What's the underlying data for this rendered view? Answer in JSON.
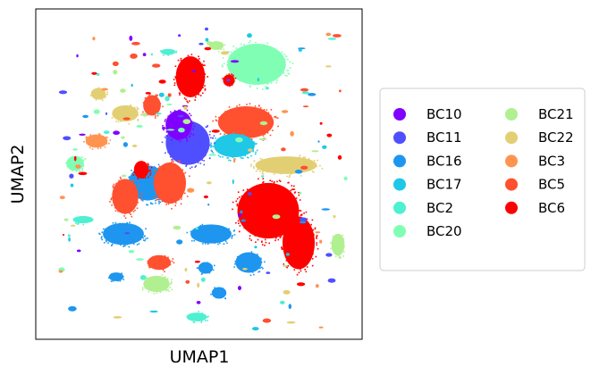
{
  "chart_data": {
    "type": "scatter",
    "title": "",
    "xlabel": "UMAP1",
    "ylabel": "UMAP2",
    "x_ticks": [],
    "y_ticks": [],
    "grid": false,
    "legend_placement": "right, outside plot",
    "legend_columns": 2,
    "series": [
      {
        "name": "BC10",
        "color": "#8000ff"
      },
      {
        "name": "BC11",
        "color": "#4f4fff"
      },
      {
        "name": "BC16",
        "color": "#1e96f0"
      },
      {
        "name": "BC17",
        "color": "#1ec8e6"
      },
      {
        "name": "BC2",
        "color": "#4ef0d2"
      },
      {
        "name": "BC20",
        "color": "#80ffb4"
      },
      {
        "name": "BC21",
        "color": "#b0f090"
      },
      {
        "name": "BC22",
        "color": "#e3cf73"
      },
      {
        "name": "BC3",
        "color": "#ff9450"
      },
      {
        "name": "BC5",
        "color": "#ff5030"
      },
      {
        "name": "BC6",
        "color": "#ff0000"
      }
    ],
    "clusters_note": "single-cell UMAP embedding; individual cell coordinates not recoverable from image"
  }
}
